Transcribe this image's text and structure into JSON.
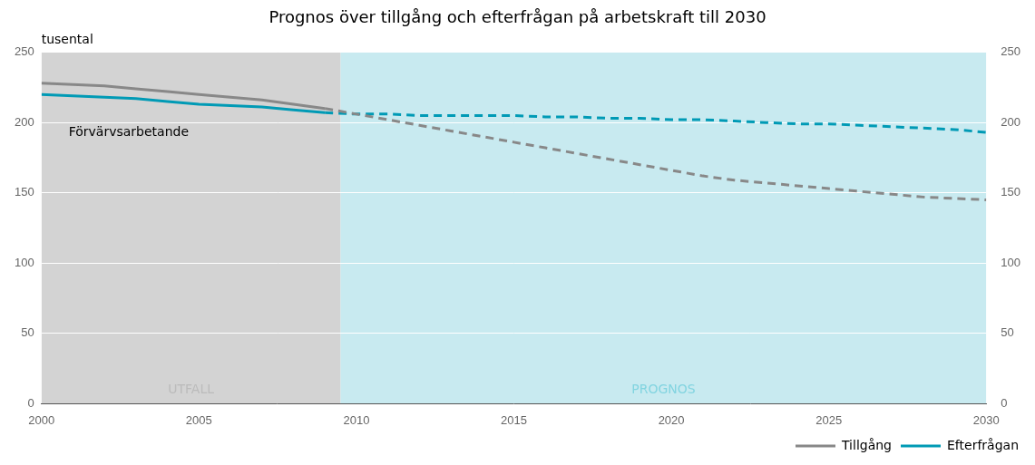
{
  "chart_data": {
    "type": "line",
    "title": "Prognos över tillgång och efterfrågan på arbetskraft till 2030",
    "ylabel": "tusental",
    "annotation": "Förvärvsarbetande",
    "series": [
      {
        "name": "Tillgång",
        "color": "#888888",
        "line_style": "solid",
        "x": [
          2000,
          2001,
          2002,
          2003,
          2004,
          2005,
          2006,
          2007,
          2008,
          2009
        ],
        "values": [
          228,
          227,
          226,
          224,
          222,
          220,
          218,
          216,
          213,
          210
        ]
      },
      {
        "name": "Tillgång",
        "color": "#888888",
        "line_style": "dotted",
        "x": [
          2009,
          2010,
          2011,
          2012,
          2013,
          2014,
          2015,
          2016,
          2017,
          2018,
          2019,
          2020,
          2021,
          2022,
          2023,
          2024,
          2025,
          2026,
          2027,
          2028,
          2029,
          2030
        ],
        "values": [
          210,
          206,
          202,
          198,
          194,
          190,
          186,
          182,
          178,
          174,
          170,
          166,
          162,
          159,
          157,
          155,
          153,
          151,
          149,
          147,
          146,
          145
        ]
      },
      {
        "name": "Efterfrågan",
        "color": "#009ab5",
        "line_style": "solid",
        "x": [
          2000,
          2001,
          2002,
          2003,
          2004,
          2005,
          2006,
          2007,
          2008,
          2009
        ],
        "values": [
          220,
          219,
          218,
          217,
          215,
          213,
          212,
          211,
          209,
          207
        ]
      },
      {
        "name": "Efterfrågan",
        "color": "#009ab5",
        "line_style": "dotted",
        "x": [
          2009,
          2010,
          2011,
          2012,
          2013,
          2014,
          2015,
          2016,
          2017,
          2018,
          2019,
          2020,
          2021,
          2022,
          2023,
          2024,
          2025,
          2026,
          2027,
          2028,
          2029,
          2030
        ],
        "values": [
          207,
          206,
          206,
          205,
          205,
          205,
          205,
          204,
          204,
          203,
          203,
          202,
          202,
          201,
          200,
          199,
          199,
          198,
          197,
          196,
          195,
          193
        ]
      }
    ],
    "regions": [
      {
        "from": 2000,
        "to": 2009.5,
        "color": "#d3d3d3",
        "label": "UTFALL",
        "label_color": "#bbbbbb"
      },
      {
        "from": 2009.5,
        "to": 2030,
        "color": "#c8eaf0",
        "label": "PROGNOS",
        "label_color": "#82d4e0"
      }
    ],
    "xlim": [
      2000,
      2030
    ],
    "xticks": [
      2000,
      2005,
      2010,
      2015,
      2020,
      2025,
      2030
    ],
    "ylim": [
      0,
      250
    ],
    "yticks": [
      0,
      50,
      100,
      150,
      200,
      250
    ],
    "y2lim": [
      0,
      250
    ],
    "y2ticks": [
      0,
      50,
      100,
      150,
      200,
      250
    ],
    "grid": true,
    "legend": "lower right"
  }
}
